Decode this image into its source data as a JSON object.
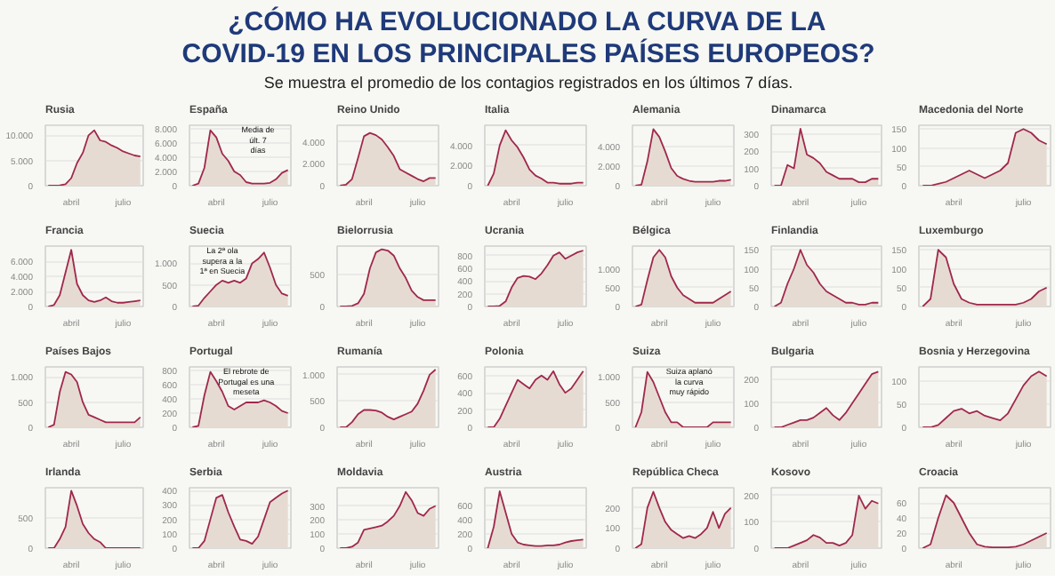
{
  "chart_data": [
    {
      "type": "other",
      "title": "¿CÓMO HA EVOLUCIONADO LA CURVA DE LA COVID-19 EN LOS PRINCIPALES PAÍSES EUROPEOS?",
      "subtitle": "Se muestra el promedio de los contagios registrados en los últimos 7 días."
    },
    {
      "type": "area",
      "title": "Rusia",
      "categories": [
        null,
        null,
        null,
        null,
        "abril",
        null,
        null,
        null,
        null,
        null,
        null,
        null,
        null,
        "julio",
        null,
        null,
        null
      ],
      "series": [
        {
          "color": "#a0284c",
          "values": [
            0,
            5,
            50,
            300,
            1500,
            4500,
            6500,
            10000,
            11000,
            9000,
            8700,
            8000,
            7500,
            6800,
            6400,
            6000,
            5800
          ]
        }
      ],
      "ylim": [
        0,
        12000
      ],
      "yticks": [
        0,
        {
          "value": 5000,
          "label": "5.000"
        },
        {
          "value": 10000,
          "label": "10.000"
        }
      ],
      "grid": "y"
    },
    {
      "type": "area",
      "title": "España",
      "categories": [
        null,
        null,
        null,
        null,
        "abril",
        null,
        null,
        null,
        null,
        null,
        null,
        null,
        null,
        "julio",
        null,
        null,
        null
      ],
      "series": [
        {
          "color": "#a0284c",
          "values": [
            0,
            300,
            2500,
            7800,
            6800,
            4500,
            3500,
            2000,
            1500,
            500,
            300,
            300,
            300,
            400,
            900,
            1800,
            2200
          ]
        }
      ],
      "ylim": [
        0,
        8500
      ],
      "yticks": [
        0,
        {
          "value": 2000,
          "label": "2.000"
        },
        {
          "value": 4000,
          "label": "4.000"
        },
        {
          "value": 6000,
          "label": "6.000"
        },
        {
          "value": 8000,
          "label": "8.000"
        }
      ],
      "grid": "y",
      "annotations": [
        "Media de últ. 7 días"
      ]
    },
    {
      "type": "area",
      "title": "Reino Unido",
      "categories": [
        null,
        null,
        null,
        null,
        "abril",
        null,
        null,
        null,
        null,
        null,
        null,
        null,
        null,
        "julio",
        null,
        null,
        null
      ],
      "series": [
        {
          "color": "#a0284c",
          "values": [
            0,
            100,
            600,
            2500,
            4500,
            4800,
            4600,
            4200,
            3500,
            2700,
            1500,
            1200,
            900,
            600,
            400,
            700,
            700
          ]
        }
      ],
      "ylim": [
        0,
        5500
      ],
      "yticks": [
        0,
        {
          "value": 2000,
          "label": "2.000"
        },
        {
          "value": 4000,
          "label": "4.000"
        }
      ],
      "grid": "y"
    },
    {
      "type": "area",
      "title": "Italia",
      "categories": [
        null,
        null,
        null,
        null,
        "abril",
        null,
        null,
        null,
        null,
        null,
        null,
        null,
        null,
        "julio",
        null,
        null,
        null
      ],
      "series": [
        {
          "color": "#a0284c",
          "values": [
            0,
            1200,
            4000,
            5500,
            4500,
            3800,
            2800,
            1600,
            1000,
            700,
            300,
            300,
            200,
            200,
            200,
            300,
            300
          ]
        }
      ],
      "ylim": [
        0,
        6000
      ],
      "yticks": [
        0,
        {
          "value": 2000,
          "label": "2.000"
        },
        {
          "value": 4000,
          "label": "4.000"
        }
      ],
      "grid": "y"
    },
    {
      "type": "area",
      "title": "Alemania",
      "categories": [
        null,
        null,
        null,
        null,
        "abril",
        null,
        null,
        null,
        null,
        null,
        null,
        null,
        null,
        "julio",
        null,
        null,
        null
      ],
      "series": [
        {
          "color": "#a0284c",
          "values": [
            0,
            100,
            2500,
            5800,
            5000,
            3500,
            1800,
            1000,
            700,
            500,
            400,
            400,
            400,
            400,
            500,
            500,
            600
          ]
        }
      ],
      "ylim": [
        0,
        6200
      ],
      "yticks": [
        0,
        {
          "value": 2000,
          "label": "2.000"
        },
        {
          "value": 4000,
          "label": "4.000"
        }
      ],
      "grid": "y"
    },
    {
      "type": "area",
      "title": "Dinamarca",
      "categories": [
        null,
        null,
        null,
        null,
        "abril",
        null,
        null,
        null,
        null,
        null,
        null,
        null,
        null,
        "julio",
        null,
        null,
        null
      ],
      "series": [
        {
          "color": "#a0284c",
          "values": [
            0,
            0,
            120,
            100,
            330,
            180,
            160,
            130,
            80,
            60,
            40,
            40,
            40,
            20,
            20,
            40,
            40
          ]
        }
      ],
      "ylim": [
        0,
        350
      ],
      "yticks": [
        0,
        100,
        200,
        300
      ],
      "grid": "y"
    },
    {
      "type": "area",
      "title": "Macedonia del Norte",
      "categories": [
        null,
        null,
        null,
        null,
        "abril",
        null,
        null,
        null,
        null,
        null,
        null,
        null,
        null,
        "julio",
        null,
        null,
        null
      ],
      "series": [
        {
          "color": "#a0284c",
          "values": [
            0,
            0,
            5,
            10,
            20,
            30,
            40,
            30,
            20,
            30,
            40,
            60,
            140,
            150,
            140,
            120,
            110
          ]
        }
      ],
      "ylim": [
        0,
        160
      ],
      "yticks": [
        0,
        50,
        100,
        150
      ],
      "grid": "y"
    },
    {
      "type": "area",
      "title": "Francia",
      "categories": [
        null,
        null,
        null,
        null,
        "abril",
        null,
        null,
        null,
        null,
        null,
        null,
        null,
        null,
        "julio",
        null,
        null,
        null
      ],
      "series": [
        {
          "color": "#a0284c",
          "values": [
            0,
            200,
            1500,
            4500,
            7500,
            3000,
            1500,
            800,
            600,
            800,
            1200,
            700,
            500,
            500,
            600,
            700,
            800
          ]
        }
      ],
      "ylim": [
        0,
        8000
      ],
      "yticks": [
        0,
        {
          "value": 2000,
          "label": "2.000"
        },
        {
          "value": 4000,
          "label": "4.000"
        },
        {
          "value": 6000,
          "label": "6.000"
        }
      ],
      "grid": "y"
    },
    {
      "type": "area",
      "title": "Suecia",
      "categories": [
        null,
        null,
        null,
        null,
        "abril",
        null,
        null,
        null,
        null,
        null,
        null,
        null,
        null,
        "julio",
        null,
        null,
        null
      ],
      "series": [
        {
          "color": "#a0284c",
          "values": [
            0,
            20,
            200,
            350,
            500,
            600,
            550,
            600,
            550,
            650,
            1000,
            1100,
            1250,
            900,
            500,
            300,
            250
          ]
        }
      ],
      "ylim": [
        0,
        1400
      ],
      "yticks": [
        0,
        500,
        {
          "value": 1000,
          "label": "1.000"
        }
      ],
      "grid": "y",
      "annotations": [
        "La 2ª ola supera a la 1ª en Suecia"
      ]
    },
    {
      "type": "area",
      "title": "Bielorrusia",
      "categories": [
        null,
        null,
        null,
        null,
        "abril",
        null,
        null,
        null,
        null,
        null,
        null,
        null,
        null,
        "julio",
        null,
        null,
        null
      ],
      "series": [
        {
          "color": "#a0284c",
          "values": [
            0,
            0,
            10,
            50,
            200,
            600,
            850,
            900,
            880,
            800,
            600,
            450,
            250,
            150,
            100,
            100,
            100
          ]
        }
      ],
      "ylim": [
        0,
        950
      ],
      "yticks": [
        0,
        500
      ],
      "grid": "y"
    },
    {
      "type": "area",
      "title": "Ucrania",
      "categories": [
        null,
        null,
        null,
        null,
        "abril",
        null,
        null,
        null,
        null,
        null,
        null,
        null,
        null,
        "julio",
        null,
        null,
        null
      ],
      "series": [
        {
          "color": "#a0284c",
          "values": [
            0,
            0,
            10,
            80,
            300,
            450,
            480,
            470,
            430,
            520,
            650,
            800,
            850,
            750,
            800,
            850,
            880
          ]
        }
      ],
      "ylim": [
        0,
        950
      ],
      "yticks": [
        0,
        200,
        400,
        600,
        800
      ],
      "grid": "y"
    },
    {
      "type": "area",
      "title": "Bélgica",
      "categories": [
        null,
        null,
        null,
        null,
        "abril",
        null,
        null,
        null,
        null,
        null,
        null,
        null,
        null,
        "julio",
        null,
        null,
        null
      ],
      "series": [
        {
          "color": "#a0284c",
          "values": [
            0,
            50,
            700,
            1300,
            1500,
            1300,
            800,
            500,
            300,
            200,
            100,
            100,
            100,
            100,
            200,
            300,
            400
          ]
        }
      ],
      "ylim": [
        0,
        1600
      ],
      "yticks": [
        0,
        500,
        {
          "value": 1000,
          "label": "1.000"
        }
      ],
      "grid": "y"
    },
    {
      "type": "area",
      "title": "Finlandia",
      "categories": [
        null,
        null,
        null,
        null,
        "abril",
        null,
        null,
        null,
        null,
        null,
        null,
        null,
        null,
        "julio",
        null,
        null,
        null
      ],
      "series": [
        {
          "color": "#a0284c",
          "values": [
            0,
            10,
            60,
            100,
            150,
            110,
            90,
            60,
            40,
            30,
            20,
            10,
            10,
            5,
            5,
            10,
            10
          ]
        }
      ],
      "ylim": [
        0,
        160
      ],
      "yticks": [
        0,
        50,
        100,
        150
      ],
      "grid": "y"
    },
    {
      "type": "area",
      "title": "Luxemburgo",
      "categories": [
        null,
        null,
        null,
        null,
        "abril",
        null,
        null,
        null,
        null,
        null,
        null,
        null,
        null,
        "julio",
        null,
        null,
        null
      ],
      "series": [
        {
          "color": "#a0284c",
          "values": [
            0,
            20,
            150,
            130,
            60,
            20,
            10,
            5,
            5,
            5,
            5,
            5,
            5,
            10,
            20,
            40,
            50
          ]
        }
      ],
      "ylim": [
        0,
        160
      ],
      "yticks": [
        0,
        50,
        100,
        150
      ],
      "grid": "y"
    },
    {
      "type": "area",
      "title": "Países Bajos",
      "categories": [
        null,
        null,
        null,
        null,
        "abril",
        null,
        null,
        null,
        null,
        null,
        null,
        null,
        null,
        "julio",
        null,
        null,
        null
      ],
      "series": [
        {
          "color": "#a0284c",
          "values": [
            0,
            50,
            700,
            1100,
            1050,
            900,
            500,
            250,
            200,
            150,
            100,
            100,
            100,
            100,
            100,
            100,
            200
          ]
        }
      ],
      "ylim": [
        0,
        1200
      ],
      "yticks": [
        0,
        500,
        {
          "value": 1000,
          "label": "1.000"
        }
      ],
      "grid": "y"
    },
    {
      "type": "area",
      "title": "Portugal",
      "categories": [
        null,
        null,
        null,
        null,
        "abril",
        null,
        null,
        null,
        null,
        null,
        null,
        null,
        null,
        "julio",
        null,
        null,
        null
      ],
      "series": [
        {
          "color": "#a0284c",
          "values": [
            0,
            20,
            450,
            780,
            650,
            500,
            300,
            250,
            300,
            350,
            350,
            350,
            380,
            350,
            300,
            230,
            200
          ]
        }
      ],
      "ylim": [
        0,
        850
      ],
      "yticks": [
        0,
        200,
        400,
        600,
        800
      ],
      "grid": "y",
      "annotations": [
        "El rebrote de Portugal es una meseta"
      ]
    },
    {
      "type": "area",
      "title": "Rumanía",
      "categories": [
        null,
        null,
        null,
        null,
        "abril",
        null,
        null,
        null,
        null,
        null,
        null,
        null,
        null,
        "julio",
        null,
        null,
        null
      ],
      "series": [
        {
          "color": "#a0284c",
          "values": [
            0,
            0,
            100,
            250,
            330,
            330,
            320,
            280,
            200,
            150,
            200,
            250,
            300,
            450,
            700,
            1000,
            1100
          ]
        }
      ],
      "ylim": [
        0,
        1150
      ],
      "yticks": [
        0,
        500,
        {
          "value": 1000,
          "label": "1.000"
        }
      ],
      "grid": "y"
    },
    {
      "type": "area",
      "title": "Polonia",
      "categories": [
        null,
        null,
        null,
        null,
        "abril",
        null,
        null,
        null,
        null,
        null,
        null,
        null,
        null,
        "julio",
        null,
        null,
        null
      ],
      "series": [
        {
          "color": "#a0284c",
          "values": [
            0,
            0,
            100,
            250,
            400,
            550,
            500,
            450,
            550,
            600,
            550,
            650,
            500,
            400,
            450,
            550,
            650
          ]
        }
      ],
      "ylim": [
        0,
        700
      ],
      "yticks": [
        0,
        200,
        400,
        600
      ],
      "grid": "y"
    },
    {
      "type": "area",
      "title": "Suiza",
      "categories": [
        null,
        null,
        null,
        null,
        "abril",
        null,
        null,
        null,
        null,
        null,
        null,
        null,
        null,
        "julio",
        null,
        null,
        null
      ],
      "series": [
        {
          "color": "#a0284c",
          "values": [
            0,
            300,
            1100,
            900,
            600,
            300,
            100,
            100,
            0,
            0,
            0,
            0,
            0,
            100,
            100,
            100,
            100
          ]
        }
      ],
      "ylim": [
        0,
        1200
      ],
      "yticks": [
        0,
        500,
        {
          "value": 1000,
          "label": "1.000"
        }
      ],
      "grid": "y",
      "annotations": [
        "Suiza aplanó la curva muy rápido"
      ]
    },
    {
      "type": "area",
      "title": "Bulgaria",
      "categories": [
        null,
        null,
        null,
        null,
        "abril",
        null,
        null,
        null,
        null,
        null,
        null,
        null,
        null,
        "julio",
        null,
        null,
        null
      ],
      "series": [
        {
          "color": "#a0284c",
          "values": [
            0,
            0,
            10,
            20,
            30,
            30,
            40,
            60,
            80,
            50,
            30,
            60,
            100,
            140,
            180,
            220,
            230
          ]
        }
      ],
      "ylim": [
        0,
        250
      ],
      "yticks": [
        0,
        100,
        200
      ],
      "grid": "y"
    },
    {
      "type": "area",
      "title": "Bosnia y Herzegovina",
      "categories": [
        null,
        null,
        null,
        null,
        "abril",
        null,
        null,
        null,
        null,
        null,
        null,
        null,
        null,
        "julio",
        null,
        null,
        null
      ],
      "series": [
        {
          "color": "#a0284c",
          "values": [
            0,
            0,
            5,
            20,
            35,
            40,
            30,
            35,
            25,
            20,
            15,
            30,
            60,
            90,
            110,
            120,
            110
          ]
        }
      ],
      "ylim": [
        0,
        130
      ],
      "yticks": [
        0,
        50,
        100
      ],
      "grid": "y"
    },
    {
      "type": "area",
      "title": "Irlanda",
      "categories": [
        null,
        null,
        null,
        null,
        "abril",
        null,
        null,
        null,
        null,
        null,
        null,
        null,
        null,
        "julio",
        null,
        null,
        null
      ],
      "series": [
        {
          "color": "#a0284c",
          "values": [
            0,
            0,
            150,
            350,
            950,
            700,
            400,
            250,
            150,
            100,
            0,
            0,
            0,
            0,
            0,
            0,
            0
          ]
        }
      ],
      "ylim": [
        0,
        1000
      ],
      "yticks": [
        0,
        500
      ],
      "grid": "y"
    },
    {
      "type": "area",
      "title": "Serbia",
      "categories": [
        null,
        null,
        null,
        null,
        "abril",
        null,
        null,
        null,
        null,
        null,
        null,
        null,
        null,
        "julio",
        null,
        null,
        null
      ],
      "series": [
        {
          "color": "#a0284c",
          "values": [
            0,
            0,
            50,
            200,
            350,
            370,
            250,
            150,
            60,
            50,
            30,
            80,
            200,
            320,
            350,
            380,
            400
          ]
        }
      ],
      "ylim": [
        0,
        420
      ],
      "yticks": [
        0,
        100,
        200,
        300,
        400
      ],
      "grid": "y"
    },
    {
      "type": "area",
      "title": "Moldavia",
      "categories": [
        null,
        null,
        null,
        null,
        "abril",
        null,
        null,
        null,
        null,
        null,
        null,
        null,
        null,
        "julio",
        null,
        null,
        null
      ],
      "series": [
        {
          "color": "#a0284c",
          "values": [
            0,
            0,
            10,
            40,
            130,
            140,
            150,
            160,
            190,
            230,
            300,
            400,
            340,
            250,
            230,
            280,
            300
          ]
        }
      ],
      "ylim": [
        0,
        430
      ],
      "yticks": [
        0,
        100,
        200,
        300
      ],
      "grid": "y"
    },
    {
      "type": "area",
      "title": "Austria",
      "categories": [
        null,
        null,
        null,
        null,
        "abril",
        null,
        null,
        null,
        null,
        null,
        null,
        null,
        null,
        "julio",
        null,
        null,
        null
      ],
      "series": [
        {
          "color": "#a0284c",
          "values": [
            0,
            300,
            800,
            500,
            200,
            80,
            50,
            40,
            30,
            30,
            40,
            40,
            50,
            80,
            100,
            110,
            120
          ]
        }
      ],
      "ylim": [
        0,
        850
      ],
      "yticks": [
        0,
        200,
        400,
        600
      ],
      "grid": "y"
    },
    {
      "type": "area",
      "title": "República Checa",
      "categories": [
        null,
        null,
        null,
        null,
        "abril",
        null,
        null,
        null,
        null,
        null,
        null,
        null,
        null,
        "julio",
        null,
        null,
        null
      ],
      "series": [
        {
          "color": "#a0284c",
          "values": [
            0,
            20,
            200,
            280,
            200,
            130,
            90,
            70,
            50,
            60,
            50,
            70,
            100,
            180,
            100,
            170,
            200
          ]
        }
      ],
      "ylim": [
        0,
        300
      ],
      "yticks": [
        0,
        100,
        200
      ],
      "grid": "y"
    },
    {
      "type": "area",
      "title": "Kosovo",
      "categories": [
        null,
        null,
        null,
        null,
        "abril",
        null,
        null,
        null,
        null,
        null,
        null,
        null,
        null,
        "julio",
        null,
        null,
        null
      ],
      "series": [
        {
          "color": "#a0284c",
          "values": [
            0,
            0,
            0,
            10,
            20,
            30,
            50,
            40,
            20,
            20,
            10,
            20,
            50,
            200,
            150,
            180,
            170
          ]
        }
      ],
      "ylim": [
        0,
        230
      ],
      "yticks": [
        0,
        100,
        200
      ],
      "grid": "y"
    },
    {
      "type": "area",
      "title": "Croacia",
      "categories": [
        null,
        null,
        null,
        null,
        "abril",
        null,
        null,
        null,
        null,
        null,
        null,
        null,
        null,
        "julio",
        null,
        null,
        null
      ],
      "series": [
        {
          "color": "#a0284c",
          "values": [
            0,
            5,
            40,
            70,
            60,
            40,
            20,
            5,
            2,
            1,
            1,
            1,
            2,
            5,
            10,
            15,
            20
          ]
        }
      ],
      "ylim": [
        0,
        80
      ],
      "yticks": [
        0,
        20,
        40,
        60
      ],
      "grid": "y"
    }
  ]
}
